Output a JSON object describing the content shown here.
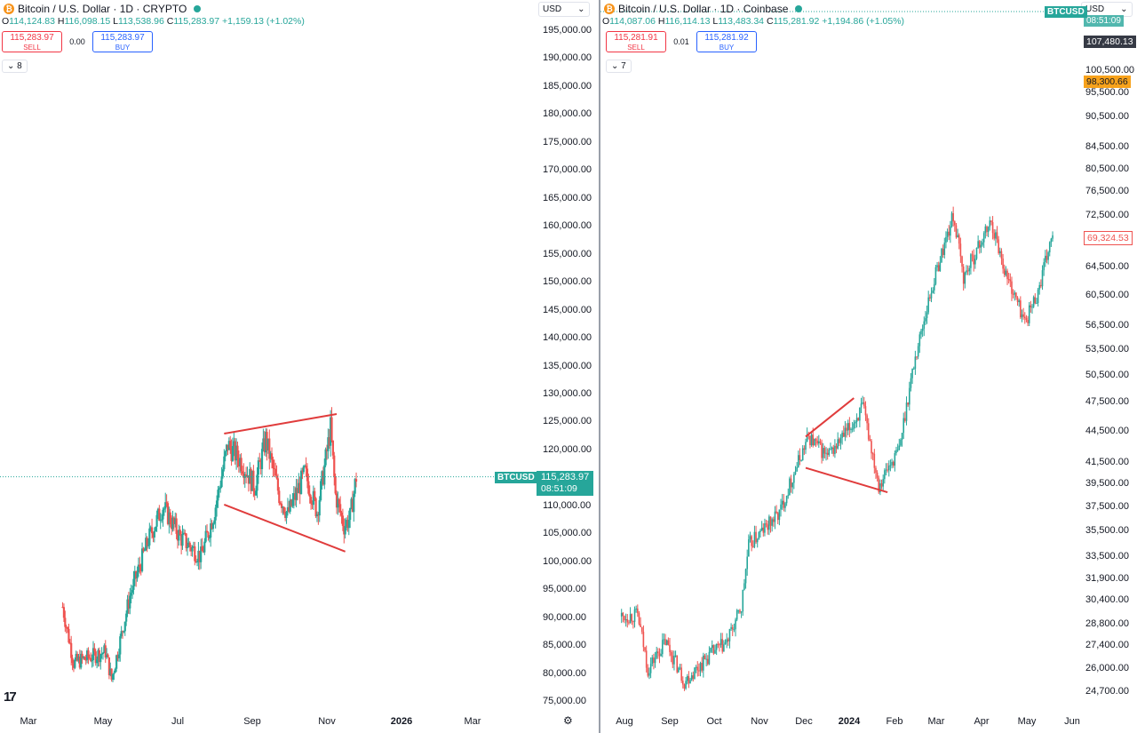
{
  "colors": {
    "up": "#26a69a",
    "down": "#ef5350",
    "line": "#e03c3c",
    "price": "#26a69a",
    "dark": "#363a45",
    "orange": "#f7a21b"
  },
  "left": {
    "header": {
      "title": "Bitcoin / U.S. Dollar · 1D · CRYPTO",
      "icon": "bitcoin-icon"
    },
    "ohlc": {
      "o_label": "O",
      "o": "114,124.83",
      "h_label": "H",
      "h": "116,098.15",
      "l_label": "L",
      "l": "113,538.96",
      "c_label": "C",
      "c": "115,283.97",
      "chg": "+1,159.13 (+1.02%)"
    },
    "trade": {
      "sell_price": "115,283.97",
      "sell_label": "SELL",
      "spread": "0.00",
      "buy_price": "115,283.97",
      "buy_label": "BUY"
    },
    "collapse_count": "8",
    "currency": "USD",
    "price_tag": {
      "symbol": "BTCUSD",
      "price": "115,283.97",
      "timer": "08:51:09"
    },
    "y_ticks": [
      "195,000.00",
      "190,000.00",
      "185,000.00",
      "180,000.00",
      "175,000.00",
      "170,000.00",
      "165,000.00",
      "160,000.00",
      "155,000.00",
      "150,000.00",
      "145,000.00",
      "140,000.00",
      "135,000.00",
      "130,000.00",
      "125,000.00",
      "120,000.00",
      "115,000.00",
      "110,000.00",
      "105,000.00",
      "100,000.00",
      "95,000.00",
      "90,000.00",
      "85,000.00",
      "80,000.00",
      "75,000.00"
    ],
    "x_ticks": [
      {
        "t": "Mar"
      },
      {
        "t": "May"
      },
      {
        "t": "Jul"
      },
      {
        "t": "Sep"
      },
      {
        "t": "Nov"
      },
      {
        "t": "2026",
        "bold": true
      },
      {
        "t": "Mar"
      }
    ]
  },
  "right": {
    "header": {
      "title": "Bitcoin / U.S. Dollar · 1D · Coinbase",
      "icon": "bitcoin-icon"
    },
    "ohlc": {
      "o_label": "O",
      "o": "114,087.06",
      "h_label": "H",
      "h": "116,114.13",
      "l_label": "L",
      "l": "113,483.34",
      "c_label": "C",
      "c": "115,281.92",
      "chg": "+1,194.86 (+1.05%)"
    },
    "trade": {
      "sell_price": "115,281.91",
      "sell_label": "SELL",
      "spread": "0.01",
      "buy_price": "115,281.92",
      "buy_label": "BUY"
    },
    "collapse_count": "7",
    "currency": "USD",
    "tags": {
      "symbol": "BTCUSD",
      "timer": "08:51:09",
      "dark_price": "107,480.13",
      "orange_price": "98,300.66",
      "last_price": "69,324.53"
    },
    "y_ticks": [
      "100,500.00",
      "95,500.00",
      "90,500.00",
      "84,500.00",
      "80,500.00",
      "76,500.00",
      "72,500.00",
      "64,500.00",
      "60,500.00",
      "56,500.00",
      "53,500.00",
      "50,500.00",
      "47,500.00",
      "44,500.00",
      "41,500.00",
      "39,500.00",
      "37,500.00",
      "35,500.00",
      "33,500.00",
      "31,900.00",
      "30,400.00",
      "28,800.00",
      "27,400.00",
      "26,000.00",
      "24,700.00"
    ],
    "x_ticks": [
      {
        "t": "Aug"
      },
      {
        "t": "Sep"
      },
      {
        "t": "Oct"
      },
      {
        "t": "Nov"
      },
      {
        "t": "Dec"
      },
      {
        "t": "2024",
        "bold": true
      },
      {
        "t": "Feb"
      },
      {
        "t": "Mar"
      },
      {
        "t": "Apr"
      },
      {
        "t": "May"
      },
      {
        "t": "Jun"
      }
    ]
  },
  "chart_data": [
    {
      "type": "candlestick",
      "title": "Bitcoin / U.S. Dollar · 1D · CRYPTO",
      "ylim": [
        75000,
        195000
      ],
      "x_range": [
        "Mar 2025",
        "Nov 2025"
      ],
      "anchors": [
        [
          "Mar 1",
          92000
        ],
        [
          "Mar 10",
          82000
        ],
        [
          "Apr 5",
          84000
        ],
        [
          "Apr 10",
          79000
        ],
        [
          "Apr 25",
          94000
        ],
        [
          "May 10",
          104000
        ],
        [
          "May 22",
          110000
        ],
        [
          "Jun 5",
          104500
        ],
        [
          "Jun 22",
          101000
        ],
        [
          "Jul 3",
          109000
        ],
        [
          "Jul 14",
          121000
        ],
        [
          "Jul 25",
          118000
        ],
        [
          "Aug 5",
          113500
        ],
        [
          "Aug 14",
          122000
        ],
        [
          "Aug 25",
          112000
        ],
        [
          "Sep 1",
          108500
        ],
        [
          "Sep 15",
          116000
        ],
        [
          "Sep 25",
          109000
        ],
        [
          "Oct 1",
          117000
        ],
        [
          "Oct 6",
          124000
        ],
        [
          "Oct 10",
          112000
        ],
        [
          "Oct 17",
          106500
        ],
        [
          "Oct 22",
          108000
        ],
        [
          "Oct 27",
          115284
        ]
      ],
      "trendlines": [
        {
          "from": [
            "Jul 11",
            123000
          ],
          "to": [
            "Oct 11",
            126500
          ]
        },
        {
          "from": [
            "Jul 11",
            110300
          ],
          "to": [
            "Oct 18",
            101900
          ]
        }
      ],
      "current_price": 115283.97
    },
    {
      "type": "candlestick",
      "title": "Bitcoin / U.S. Dollar · 1D · Coinbase",
      "yscale": "log",
      "ylim": [
        24700,
        100500
      ],
      "x_range": [
        "Aug 2023",
        "Jun 2024"
      ],
      "anchors": [
        [
          "Jul 30",
          29300
        ],
        [
          "Aug 10",
          29400
        ],
        [
          "Aug 17",
          26000
        ],
        [
          "Aug 29",
          27700
        ],
        [
          "Sep 11",
          25300
        ],
        [
          "Sep 30",
          27000
        ],
        [
          "Oct 10",
          27600
        ],
        [
          "Oct 20",
          29900
        ],
        [
          "Oct 25",
          34400
        ],
        [
          "Nov 15",
          37000
        ],
        [
          "Dec 5",
          44000
        ],
        [
          "Dec 18",
          42000
        ],
        [
          "Jan 3",
          45000
        ],
        [
          "Jan 11",
          47000
        ],
        [
          "Jan 22",
          39500
        ],
        [
          "Feb 5",
          42700
        ],
        [
          "Feb 15",
          51800
        ],
        [
          "Feb 28",
          62000
        ],
        [
          "Mar 13",
          72500
        ],
        [
          "Mar 20",
          63000
        ],
        [
          "Apr 8",
          71500
        ],
        [
          "Apr 18",
          63500
        ],
        [
          "May 1",
          57000
        ],
        [
          "May 10",
          61000
        ],
        [
          "May 20",
          69324
        ]
      ],
      "trendlines": [
        {
          "from": [
            "Dec 3",
            44000
          ],
          "to": [
            "Jan 5",
            48000
          ]
        },
        {
          "from": [
            "Dec 3",
            41000
          ],
          "to": [
            "Jan 28",
            38800
          ]
        }
      ]
    }
  ]
}
